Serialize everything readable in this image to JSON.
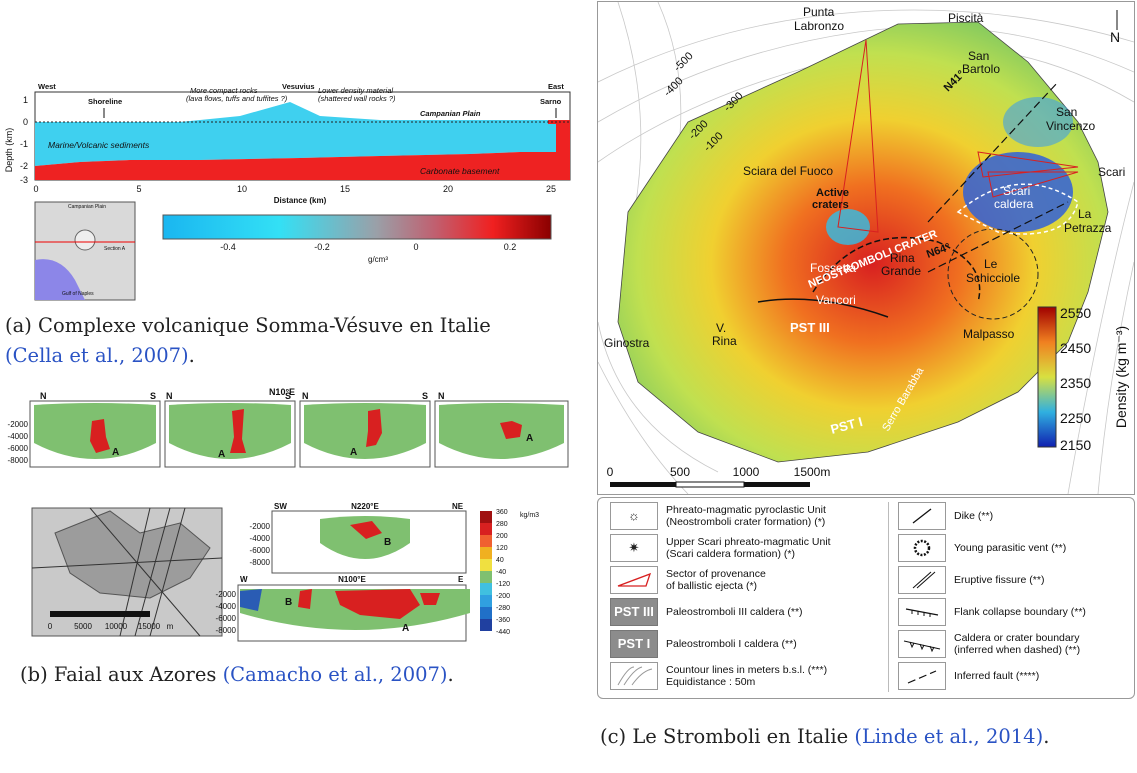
{
  "panel_a": {
    "direction_west": "West",
    "direction_east": "East",
    "label_vesuvius": "Vesuvius",
    "label_shoreline": "Shoreline",
    "label_sarno": "Sarno",
    "label_compact": "More compact rocks",
    "label_compact2": "(lava flows, tuffs and tuffites ?)",
    "label_lowdens": "Lower density material",
    "label_lowdens2": "(shattered wall rocks ?)",
    "label_campanian": "Campanian Plain",
    "label_marine": "Marine/Volcanic sediments",
    "label_carbonate": "Carbonate basement",
    "ylabel": "Depth (km)",
    "xlabel": "Distance (km)",
    "yticks": [
      "1",
      "0",
      "-1",
      "-2",
      "-3"
    ],
    "xticks": [
      "0",
      "5",
      "10",
      "15",
      "20",
      "25"
    ],
    "colorbar_ticks": [
      "-0.4",
      "-0.2",
      "0",
      "0.2"
    ],
    "colorbar_unit": "g/cm³",
    "inset_campanian": "Campanian Plain",
    "inset_section": "Section A",
    "inset_gulf": "Gulf of Naples",
    "caption_prefix": "(a) Complexe volcanique Somma-Vésuve en Italie",
    "caption_cite": "(Cella et al., 2007)",
    "caption_suffix": "."
  },
  "panel_b": {
    "title_top": "N10°E",
    "n": "N",
    "s": "S",
    "yticks": [
      "-2000",
      "-4000",
      "-6000",
      "-8000"
    ],
    "body_a": "A",
    "body_b": "B",
    "sw": "SW",
    "ne": "NE",
    "title_mid": "N220°E",
    "w": "W",
    "e": "E",
    "title_bot": "N100°E",
    "colorbar_ticks": [
      "360",
      "280",
      "200",
      "120",
      "40",
      "-40",
      "-120",
      "-200",
      "-280",
      "-360",
      "-440"
    ],
    "colorbar_unit": "kg/m3",
    "scale_ticks": [
      "0",
      "5000",
      "10000",
      "15000"
    ],
    "scale_unit": "m",
    "caption_prefix": "(b) Faial aux Azores",
    "caption_cite": "(Camacho et al., 2007)",
    "caption_suffix": "."
  },
  "panel_c": {
    "places": {
      "punta": "Punta",
      "labronzo": "Labronzo",
      "piscita": "Piscità",
      "san_bartolo1": "San",
      "san_bartolo2": "Bartolo",
      "san_vincenzo1": "San",
      "san_vincenzo2": "Vincenzo",
      "scari": "Scari",
      "la_petrazza1": "La",
      "la_petrazza2": "Petrazza",
      "sciara": "Sciara del Fuoco",
      "active1": "Active",
      "active2": "craters",
      "scari_caldera1": "Scari",
      "scari_caldera2": "caldera",
      "fossetta": "Fossetta",
      "neostromboli": "NEOSTROMBOLI CRATER",
      "rina_grande1": "Rina",
      "rina_grande2": "Grande",
      "le_schicciole1": "Le",
      "le_schicciole2": "Schicciole",
      "vancori": "Vancori",
      "pst3": "PST III",
      "pst1": "PST I",
      "v_rina1": "V.",
      "v_rina2": "Rina",
      "ginostra": "Ginostra",
      "malpasso": "Malpasso",
      "serro": "Serro Barabba",
      "n41": "N41°",
      "n64": "N64°"
    },
    "contours": [
      "-500",
      "-400",
      "-300",
      "-200",
      "-100"
    ],
    "north": "N",
    "scale_ticks": [
      "0",
      "500",
      "1000",
      "1500m"
    ],
    "colorbar_ticks": [
      "2550",
      "2450",
      "2350",
      "2250",
      "2150"
    ],
    "colorbar_title": "Density (kg m⁻³)",
    "legend_left": [
      {
        "sym": "☼",
        "line1": "Phreato-magmatic pyroclastic Unit",
        "line2": "(Neostromboli crater formation) (*)"
      },
      {
        "sym": "✷",
        "line1": "Upper Scari phreato-magmatic Unit",
        "line2": "(Scari caldera formation) (*)"
      },
      {
        "sym": "sector",
        "line1": "Sector of provenance",
        "line2": "of ballistic ejecta (*)"
      },
      {
        "sym": "PST III",
        "line1": "Paleostromboli III caldera (**)",
        "line2": ""
      },
      {
        "sym": "PST I",
        "line1": "Paleostromboli I caldera (**)",
        "line2": ""
      },
      {
        "sym": "contour",
        "line1": "Countour lines in meters b.s.l. (***)",
        "line2": "Equidistance : 50m"
      }
    ],
    "legend_right": [
      {
        "sym": "dike",
        "line1": "Dike (**)",
        "line2": ""
      },
      {
        "sym": "vent",
        "line1": "Young parasitic vent (**)",
        "line2": ""
      },
      {
        "sym": "fissure",
        "line1": "Eruptive fissure (**)",
        "line2": ""
      },
      {
        "sym": "flank",
        "line1": "Flank collapse boundary (**)",
        "line2": ""
      },
      {
        "sym": "caldera",
        "line1": "Caldera or crater boundary",
        "line2": "(inferred when dashed) (**)"
      },
      {
        "sym": "fault",
        "line1": "Inferred fault (****)",
        "line2": ""
      }
    ],
    "caption_prefix": "(c) Le Stromboli en Italie",
    "caption_cite": "(Linde et al., 2014)",
    "caption_suffix": "."
  },
  "colors": {
    "cite": "#2a53c4",
    "red": "#e8221c",
    "cyan": "#3fd0ef",
    "green": "#7fc070"
  }
}
